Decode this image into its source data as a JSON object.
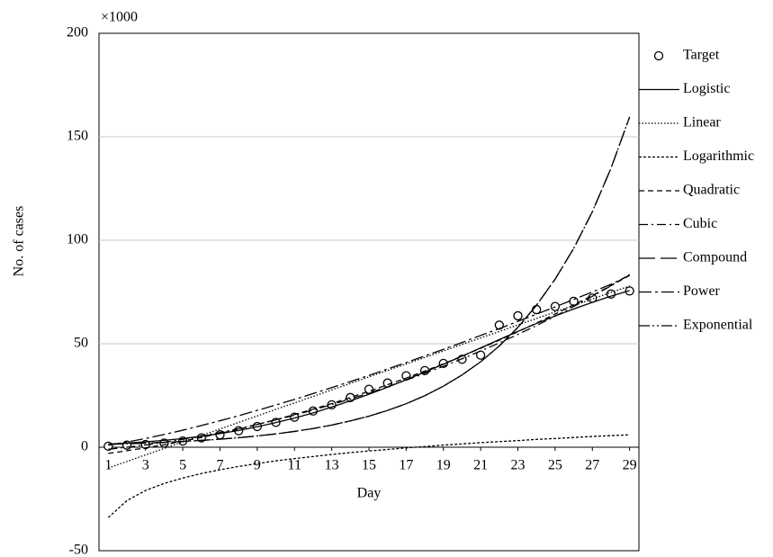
{
  "chart_data": {
    "type": "line",
    "annotation": "×1000",
    "xlabel": "Day",
    "ylabel": "No. of cases",
    "x": [
      1,
      2,
      3,
      4,
      5,
      6,
      7,
      8,
      9,
      10,
      11,
      12,
      13,
      14,
      15,
      16,
      17,
      18,
      19,
      20,
      21,
      22,
      23,
      24,
      25,
      26,
      27,
      28,
      29
    ],
    "xlim": [
      0.5,
      29.5
    ],
    "xticks": [
      1,
      3,
      5,
      7,
      9,
      11,
      13,
      15,
      17,
      19,
      21,
      23,
      25,
      27,
      29
    ],
    "ylim": [
      -50,
      200
    ],
    "yticks": [
      -50,
      0,
      50,
      100,
      150,
      200
    ],
    "grid": true,
    "series": [
      {
        "name": "Target",
        "color": "#000000",
        "marker": "circle",
        "values": [
          0.5,
          1,
          1.3,
          2,
          3,
          4.5,
          6,
          8,
          10,
          12,
          14.5,
          17.5,
          20.5,
          24,
          28,
          31,
          34.5,
          37,
          40.5,
          42.5,
          44.5,
          59,
          63.5,
          66.5,
          68,
          70.5,
          72,
          74,
          75.5
        ]
      },
      {
        "name": "Logistic",
        "color": "#000000",
        "values": [
          1.5,
          2,
          2.6,
          3.3,
          4.2,
          5.3,
          6.6,
          8.1,
          9.9,
          11.9,
          14.1,
          16.6,
          19.4,
          22.4,
          25.6,
          29,
          32.6,
          36.3,
          40.1,
          44,
          48,
          52,
          56,
          59.8,
          63.4,
          66.8,
          70,
          73,
          75.7
        ]
      },
      {
        "name": "Linear",
        "color": "#000000",
        "values": [
          -10,
          -6.9,
          -3.7,
          -0.6,
          2.6,
          5.7,
          8.8,
          12,
          15.1,
          18.3,
          21.4,
          24.5,
          27.7,
          30.8,
          34,
          37.1,
          40.2,
          43.4,
          46.5,
          49.7,
          52.8,
          55.9,
          59.1,
          62.2,
          65.4,
          68.5,
          71.6,
          74.8,
          77.9
        ]
      },
      {
        "name": "Logarithmic",
        "color": "#000000",
        "values": [
          -34,
          -25.8,
          -20.9,
          -17.5,
          -14.9,
          -12.7,
          -10.9,
          -9.3,
          -7.9,
          -6.6,
          -5.5,
          -4.5,
          -3.5,
          -2.6,
          -1.8,
          -1.1,
          -0.3,
          0.3,
          1,
          1.6,
          2.2,
          2.7,
          3.2,
          3.8,
          4.2,
          4.7,
          5.2,
          5.6,
          6
        ]
      },
      {
        "name": "Quadratic",
        "color": "#000000",
        "values": [
          -3,
          -1.7,
          -0.3,
          1.2,
          2.9,
          4.7,
          6.7,
          8.7,
          11,
          13.3,
          15.8,
          18.4,
          21.1,
          24,
          27,
          30.2,
          33.4,
          36.8,
          40.3,
          44,
          47.8,
          51.7,
          55.8,
          60,
          64.3,
          68.8,
          73.3,
          78.1,
          83
        ]
      },
      {
        "name": "Cubic",
        "color": "#000000",
        "values": [
          -1,
          0,
          1.1,
          2.4,
          3.8,
          5.4,
          7.1,
          9,
          11,
          13.2,
          15.5,
          18,
          20.6,
          23.3,
          26.2,
          29.2,
          32.4,
          35.7,
          39.1,
          42.7,
          46.5,
          50.4,
          54.5,
          58.8,
          63.3,
          68,
          72.9,
          78,
          83.5
        ]
      },
      {
        "name": "Compound",
        "color": "#000000",
        "values": [
          1.41,
          1.67,
          1.98,
          2.34,
          2.77,
          3.28,
          3.88,
          4.6,
          5.44,
          6.44,
          7.63,
          9.03,
          10.7,
          12.7,
          15,
          17.8,
          21,
          24.9,
          29.5,
          34.9,
          41.3,
          48.9,
          57.9,
          68.6,
          81.2,
          96.1,
          113.8,
          134.8,
          159.6
        ]
      },
      {
        "name": "Power",
        "color": "#000000",
        "values": [
          1,
          2.48,
          4.22,
          6.15,
          8.23,
          10.5,
          12.8,
          15.2,
          17.8,
          20.4,
          23.1,
          25.9,
          28.8,
          31.7,
          34.7,
          37.8,
          40.9,
          44.1,
          47.3,
          50.6,
          54,
          57.3,
          60.8,
          64.3,
          67.8,
          71.4,
          75,
          78.7,
          83.1
        ]
      },
      {
        "name": "Exponential",
        "color": "#000000",
        "values": [
          1.41,
          1.67,
          1.98,
          2.34,
          2.77,
          3.28,
          3.88,
          4.6,
          5.44,
          6.44,
          7.63,
          9.03,
          10.7,
          12.7,
          15,
          17.8,
          21,
          24.9,
          29.5,
          34.9,
          41.3,
          48.9,
          57.9,
          68.6,
          81.2,
          96.1,
          113.8,
          134.8,
          159.6
        ]
      }
    ]
  }
}
